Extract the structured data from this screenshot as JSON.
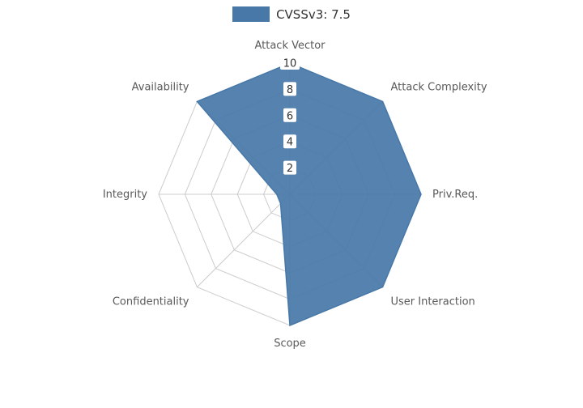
{
  "legend": {
    "label": "CVSSv3: 7.5"
  },
  "chart_data": {
    "type": "radar",
    "title": "CVSSv3: 7.5",
    "categories": [
      "Attack Vector",
      "Attack Complexity",
      "Priv.Req.",
      "User Interaction",
      "Scope",
      "Confidentiality",
      "Integrity",
      "Availability"
    ],
    "series": [
      {
        "name": "CVSSv3: 7.5",
        "values": [
          10,
          10,
          10,
          10,
          10,
          1,
          1,
          10
        ]
      }
    ],
    "rmax": 10,
    "ticks": [
      2,
      4,
      6,
      8,
      10
    ],
    "legend_position": "top",
    "grid": true,
    "colors": {
      "fill": "#4878a8",
      "grid": "#cccccc",
      "axis_label": "#595959",
      "tick_label": "#333333",
      "tick_box": "#ffffff"
    }
  }
}
